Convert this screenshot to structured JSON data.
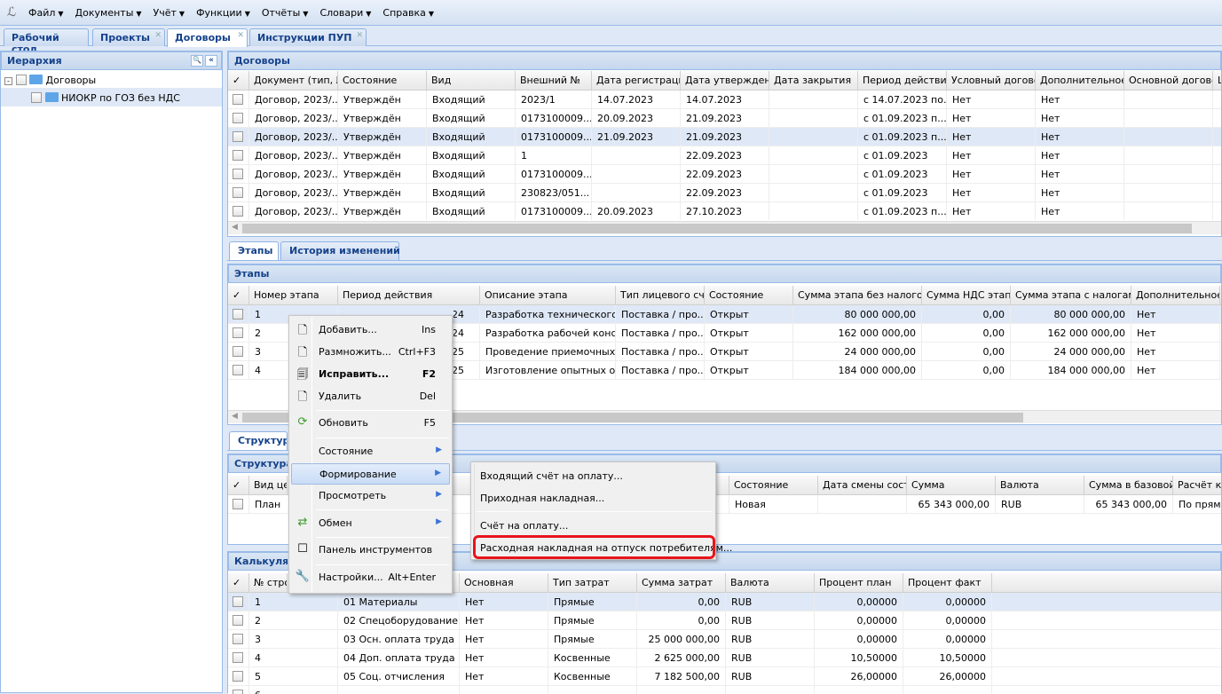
{
  "menubar": {
    "items": [
      "Файл",
      "Документы",
      "Учёт",
      "Функции",
      "Отчёты",
      "Словари",
      "Справка"
    ]
  },
  "tabs": [
    {
      "label": "Рабочий стол"
    },
    {
      "label": "Проекты",
      "closable": true
    },
    {
      "label": "Договоры",
      "closable": true,
      "active": true
    },
    {
      "label": "Инструкции ПУП",
      "closable": true
    }
  ],
  "hierarchy": {
    "title": "Иерархия",
    "tree": [
      {
        "label": "Договоры",
        "expanded": true
      },
      {
        "label": "НИОКР по ГОЗ без НДС",
        "selected": true
      }
    ]
  },
  "contracts": {
    "title": "Договоры",
    "columns": [
      "Документ (тип, №",
      "Состояние",
      "Вид",
      "Внешний №",
      "Дата регистрации",
      "Дата утверждения",
      "Дата закрытия",
      "Период действия...",
      "Условный договор",
      "Дополнительное с",
      "Основной договор",
      "L"
    ],
    "rows": [
      [
        "Договор, 2023/...",
        "Утверждён",
        "Входящий",
        "2023/1",
        "14.07.2023",
        "14.07.2023",
        "",
        "с 14.07.2023 по...",
        "Нет",
        "Нет",
        "",
        ""
      ],
      [
        "Договор, 2023/...",
        "Утверждён",
        "Входящий",
        "0173100009...",
        "20.09.2023",
        "21.09.2023",
        "",
        "с 01.09.2023 п...",
        "Нет",
        "Нет",
        "",
        ""
      ],
      [
        "Договор, 2023/...",
        "Утверждён",
        "Входящий",
        "0173100009...",
        "21.09.2023",
        "21.09.2023",
        "",
        "с 01.09.2023 п...",
        "Нет",
        "Нет",
        "",
        ""
      ],
      [
        "Договор, 2023/...",
        "Утверждён",
        "Входящий",
        "1",
        "",
        "22.09.2023",
        "",
        "с 01.09.2023",
        "Нет",
        "Нет",
        "",
        ""
      ],
      [
        "Договор, 2023/...",
        "Утверждён",
        "Входящий",
        "0173100009...",
        "",
        "22.09.2023",
        "",
        "с 01.09.2023",
        "Нет",
        "Нет",
        "",
        ""
      ],
      [
        "Договор, 2023/...",
        "Утверждён",
        "Входящий",
        "230823/051...",
        "",
        "22.09.2023",
        "",
        "с 01.09.2023",
        "Нет",
        "Нет",
        "",
        ""
      ],
      [
        "Договор, 2023/...",
        "Утверждён",
        "Входящий",
        "0173100009...",
        "20.09.2023",
        "27.10.2023",
        "",
        "с 01.09.2023 п...",
        "Нет",
        "Нет",
        "",
        ""
      ]
    ],
    "selected_row": 2
  },
  "subtabs": [
    {
      "label": "Этапы",
      "active": true
    },
    {
      "label": "История изменений"
    }
  ],
  "stages": {
    "title": "Этапы",
    "columns": [
      "Номер этапа",
      "Период действия",
      "Описание этапа",
      "Тип лицевого счёт",
      "Состояние",
      "Сумма этапа без налогов",
      "Сумма НДС этапа",
      "Сумма этапа с налогами",
      "Дополнительное с"
    ],
    "rows": [
      [
        "1",
        "с 01.09.2023 по 31.05.2024",
        "Разработка технического...",
        "Поставка / про...",
        "Открыт",
        "80 000 000,00",
        "0,00",
        "80 000 000,00",
        "Нет"
      ],
      [
        "2",
        "...24",
        "Разработка рабочей конс...",
        "Поставка / про...",
        "Открыт",
        "162 000 000,00",
        "0,00",
        "162 000 000,00",
        "Нет"
      ],
      [
        "3",
        "...25",
        "Проведение приемочных...",
        "Поставка / про...",
        "Открыт",
        "24 000 000,00",
        "0,00",
        "24 000 000,00",
        "Нет"
      ],
      [
        "4",
        "...25",
        "Изготовление опытных о...",
        "Поставка / про...",
        "Открыт",
        "184 000 000,00",
        "0,00",
        "184 000 000,00",
        "Нет"
      ]
    ],
    "selected_row": 0
  },
  "structure": {
    "tab": "Структура",
    "title": "Структура",
    "columns": [
      "Вид цен",
      "",
      "",
      "",
      "",
      "Состояние",
      "Дата смены состо",
      "Сумма",
      "Валюта",
      "Сумма в базовой в",
      "Расчёт ко"
    ],
    "rows": [
      [
        "План",
        "",
        "",
        "",
        "",
        "Новая",
        "",
        "65 343 000,00",
        "RUB",
        "65 343 000,00",
        "По прямы"
      ]
    ]
  },
  "calc": {
    "title": "Калькуляция",
    "columns": [
      "№ стро",
      "",
      "Основная",
      "Тип затрат",
      "Сумма затрат",
      "Валюта",
      "Процент план",
      "Процент факт"
    ],
    "rows": [
      [
        "1",
        "01 Материалы",
        "Нет",
        "Прямые",
        "0,00",
        "RUB",
        "0,00000",
        "0,00000"
      ],
      [
        "2",
        "02 Спецоборудование",
        "Нет",
        "Прямые",
        "0,00",
        "RUB",
        "0,00000",
        "0,00000"
      ],
      [
        "3",
        "03 Осн. оплата труда",
        "Нет",
        "Прямые",
        "25 000 000,00",
        "RUB",
        "0,00000",
        "0,00000"
      ],
      [
        "4",
        "04 Доп. оплата труда",
        "Нет",
        "Косвенные",
        "2 625 000,00",
        "RUB",
        "10,50000",
        "10,50000"
      ],
      [
        "5",
        "05 Соц. отчисления",
        "Нет",
        "Косвенные",
        "7 182 500,00",
        "RUB",
        "26,00000",
        "26,00000"
      ],
      [
        "6",
        "",
        "",
        "",
        "",
        "",
        "",
        ""
      ]
    ],
    "selected_row": 0
  },
  "context_menu": {
    "items": [
      {
        "label": "Добавить...",
        "shortcut": "Ins",
        "icon": "add-document-icon"
      },
      {
        "label": "Размножить...",
        "shortcut": "Ctrl+F3",
        "icon": "copy-document-icon"
      },
      {
        "label": "Исправить...",
        "shortcut": "F2",
        "icon": "edit-document-icon",
        "bold": true
      },
      {
        "label": "Удалить",
        "shortcut": "Del",
        "icon": "delete-document-icon"
      },
      {
        "label": "Обновить",
        "shortcut": "F5",
        "icon": "refresh-icon"
      },
      {
        "label": "Состояние",
        "submenu": true
      },
      {
        "label": "Формирование",
        "submenu": true,
        "highlighted": true
      },
      {
        "label": "Просмотреть",
        "submenu": true
      },
      {
        "label": "Обмен",
        "submenu": true,
        "icon": "exchange-icon"
      },
      {
        "label": "Панель инструментов",
        "icon": "checkbox-icon"
      },
      {
        "label": "Настройки...",
        "shortcut": "Alt+Enter",
        "icon": "wrench-icon"
      }
    ]
  },
  "submenu": {
    "items": [
      "Входящий счёт на оплату...",
      "Приходная накладная...",
      "Счёт на оплату...",
      "Расходная накладная на отпуск потребителям..."
    ],
    "highlighted_item": 3,
    "highlight_color": "#e8141c"
  }
}
